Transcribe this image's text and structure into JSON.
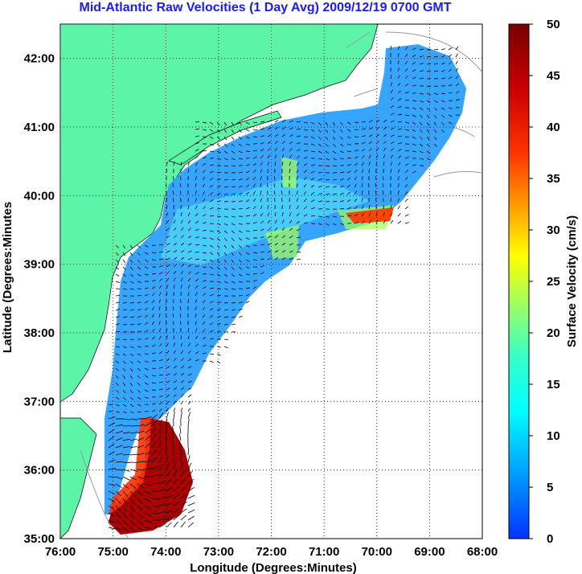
{
  "title": "Mid-Atlantic Raw Velocities (1 Day Avg) 2009/12/19 0700 GMT",
  "map": {
    "xlabel": "Longitude (Degrees:Minutes)",
    "ylabel": "Latitude (Degrees:Minutes",
    "x_ticks": [
      "76:00",
      "75:00",
      "74:00",
      "73:00",
      "72:00",
      "71:00",
      "70:00",
      "69:00",
      "68:00"
    ],
    "y_ticks": [
      "42:00",
      "41:00",
      "40:00",
      "39:00",
      "38:00",
      "37:00",
      "36:00",
      "35:00"
    ],
    "lon_range": [
      -76,
      -68
    ],
    "lat_range": [
      35,
      42.5
    ],
    "land_color": "#5cf5a8",
    "grid": "dotted"
  },
  "colorbar": {
    "label": "Surface Velocity (cm/s)",
    "ticks": [
      "0",
      "5",
      "10",
      "15",
      "20",
      "25",
      "30",
      "35",
      "40",
      "45",
      "50"
    ],
    "range": [
      0,
      50
    ]
  }
}
